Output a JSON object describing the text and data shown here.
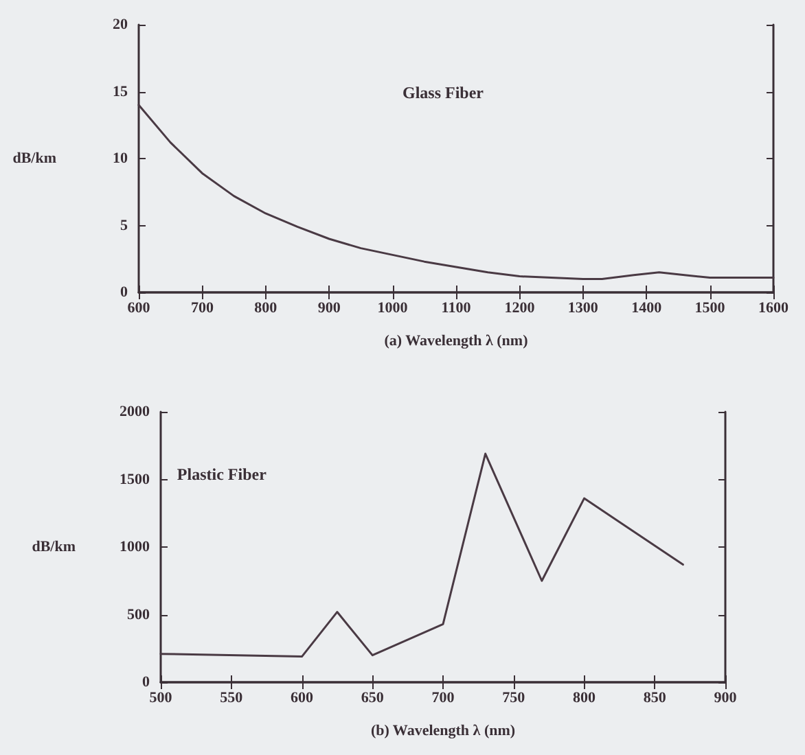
{
  "chart_data": [
    {
      "type": "line",
      "xlabel": "(a) Wavelength λ (nm)",
      "ylabel": "dB/km",
      "annotations": [
        "Glass Fiber"
      ],
      "x": [
        600,
        650,
        700,
        750,
        800,
        850,
        900,
        950,
        1000,
        1050,
        1100,
        1150,
        1200,
        1250,
        1300,
        1330,
        1380,
        1420,
        1460,
        1500,
        1550,
        1600
      ],
      "series": [
        {
          "color": "#4a3a44",
          "values": [
            14,
            11.2,
            8.9,
            7.2,
            5.9,
            4.9,
            4.0,
            3.3,
            2.8,
            2.3,
            1.9,
            1.5,
            1.2,
            1.1,
            1.0,
            1.0,
            1.3,
            1.5,
            1.3,
            1.1,
            1.1,
            1.1
          ]
        }
      ],
      "xlim": [
        600,
        1600
      ],
      "xticks": [
        600,
        700,
        800,
        900,
        1000,
        1100,
        1200,
        1300,
        1400,
        1500,
        1600
      ],
      "ylim": [
        0,
        20
      ],
      "yticks": [
        0,
        5,
        10,
        15,
        20
      ],
      "marker": "none",
      "line_style": "solid"
    },
    {
      "type": "line",
      "xlabel": "(b) Wavelength λ (nm)",
      "ylabel": "dB/km",
      "annotations": [
        "Plastic Fiber"
      ],
      "x": [
        500,
        600,
        625,
        650,
        700,
        730,
        770,
        800,
        870
      ],
      "series": [
        {
          "color": "#4a3a44",
          "values": [
            210,
            190,
            520,
            200,
            430,
            1690,
            750,
            1360,
            870
          ]
        }
      ],
      "xlim": [
        500,
        900
      ],
      "xticks": [
        500,
        550,
        600,
        650,
        700,
        750,
        800,
        850,
        900
      ],
      "ylim": [
        0,
        2000
      ],
      "yticks": [
        0,
        500,
        1000,
        1500,
        2000
      ],
      "marker": "none",
      "line_style": "solid"
    }
  ]
}
